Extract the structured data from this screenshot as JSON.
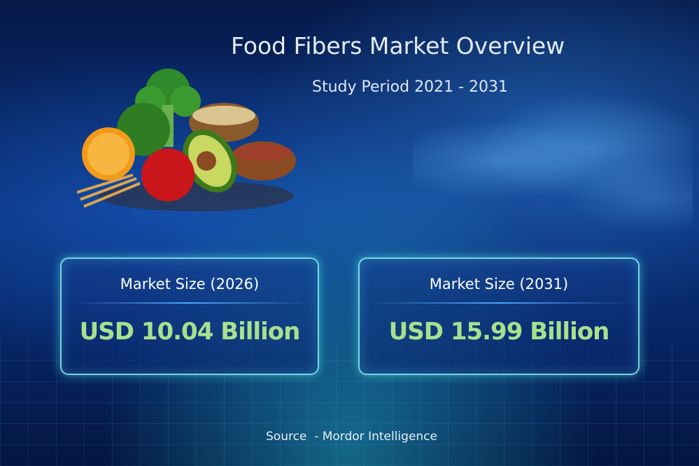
{
  "header": {
    "title": "Food Fibers Market Overview",
    "subtitle": "Study Period 2021 - 2031"
  },
  "cards": [
    {
      "label": "Market Size (2026)",
      "value": "USD 10.04 Billion"
    },
    {
      "label": "Market Size (2031)",
      "value": "USD 15.99 Billion"
    }
  ],
  "footer": {
    "source": "Source  - Mordor Intelligence"
  },
  "colors": {
    "value_text": "#a8e08e",
    "card_border": "#8cf0f0",
    "background": "#0a2f7a"
  }
}
